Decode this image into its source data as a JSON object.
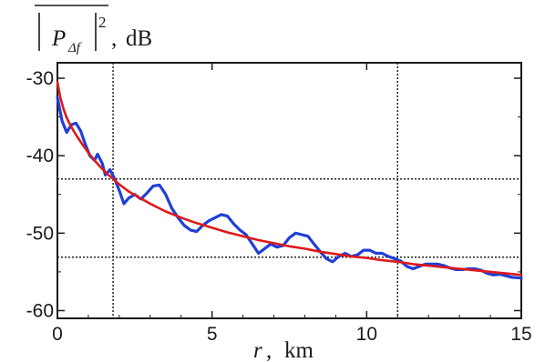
{
  "chart_data": {
    "type": "line",
    "xlabel": {
      "var": "r",
      "sep": ",",
      "unit": "km"
    },
    "ylabel": {
      "base": "P",
      "subscript": "Δf",
      "power": "2",
      "sep": ",",
      "unit": "dB"
    },
    "xlim": [
      0,
      15
    ],
    "ylim": [
      -61,
      -28
    ],
    "xticks": [
      0,
      5,
      10,
      15
    ],
    "yticks": [
      -30,
      -40,
      -50,
      -60
    ],
    "x_tick_labels": [
      "0",
      "5",
      "10",
      "15"
    ],
    "y_tick_labels": [
      "-30",
      "-40",
      "-50",
      "-60"
    ],
    "reference_lines": {
      "vertical_x": [
        1.8,
        11.0
      ],
      "horizontal_y": [
        -43.0,
        -53.1
      ]
    },
    "series": [
      {
        "color": "#1f3fd6",
        "x": [
          0.0,
          0.15,
          0.3,
          0.45,
          0.6,
          0.75,
          0.9,
          1.05,
          1.2,
          1.3,
          1.45,
          1.55,
          1.7,
          1.85,
          2.0,
          2.15,
          2.3,
          2.5,
          2.7,
          2.9,
          3.1,
          3.3,
          3.5,
          3.7,
          3.9,
          4.1,
          4.3,
          4.5,
          4.7,
          4.9,
          5.1,
          5.3,
          5.5,
          5.7,
          5.9,
          6.1,
          6.3,
          6.5,
          6.7,
          6.9,
          7.1,
          7.3,
          7.5,
          7.7,
          7.9,
          8.1,
          8.3,
          8.5,
          8.7,
          8.9,
          9.1,
          9.3,
          9.5,
          9.7,
          9.9,
          10.1,
          10.3,
          10.5,
          10.7,
          10.9,
          11.1,
          11.3,
          11.5,
          11.7,
          11.9,
          12.1,
          12.3,
          12.5,
          12.7,
          12.9,
          13.1,
          13.3,
          13.5,
          13.7,
          13.9,
          14.1,
          14.3,
          14.5,
          14.7,
          15.0
        ],
        "y": [
          -32.5,
          -35.5,
          -37.0,
          -36.0,
          -35.8,
          -36.8,
          -38.5,
          -40.0,
          -40.6,
          -39.8,
          -41.0,
          -42.5,
          -41.8,
          -43.0,
          -44.5,
          -46.2,
          -45.5,
          -45.0,
          -45.6,
          -44.8,
          -43.9,
          -43.8,
          -45.0,
          -46.8,
          -48.0,
          -49.0,
          -49.6,
          -49.8,
          -49.0,
          -48.4,
          -48.0,
          -47.6,
          -47.8,
          -48.8,
          -49.6,
          -50.2,
          -51.4,
          -52.6,
          -52.0,
          -51.4,
          -51.8,
          -51.6,
          -50.6,
          -50.0,
          -50.2,
          -50.4,
          -51.4,
          -52.4,
          -53.3,
          -53.7,
          -53.0,
          -52.6,
          -53.0,
          -52.8,
          -52.2,
          -52.2,
          -52.6,
          -52.6,
          -53.0,
          -53.3,
          -53.6,
          -54.3,
          -54.6,
          -54.3,
          -54.0,
          -54.0,
          -54.0,
          -54.2,
          -54.5,
          -54.7,
          -54.7,
          -54.6,
          -54.6,
          -54.8,
          -55.2,
          -55.4,
          -55.3,
          -55.5,
          -55.7,
          -55.8
        ]
      },
      {
        "color": "#e01818",
        "x": [
          0.0,
          0.1,
          0.2,
          0.3,
          0.45,
          0.6,
          0.8,
          1.0,
          1.2,
          1.4,
          1.6,
          1.8,
          2.0,
          2.3,
          2.6,
          3.0,
          3.5,
          4.0,
          4.5,
          5.0,
          5.5,
          6.0,
          6.5,
          7.0,
          7.5,
          8.0,
          8.5,
          9.0,
          9.5,
          10.0,
          10.5,
          11.0,
          11.5,
          12.0,
          12.5,
          13.0,
          13.5,
          14.0,
          14.5,
          15.0
        ],
        "y": [
          -30.5,
          -32.6,
          -34.0,
          -35.1,
          -36.3,
          -37.3,
          -38.5,
          -39.6,
          -40.6,
          -41.5,
          -42.3,
          -43.0,
          -43.7,
          -44.6,
          -45.3,
          -46.2,
          -47.2,
          -48.0,
          -48.7,
          -49.3,
          -49.9,
          -50.4,
          -50.9,
          -51.3,
          -51.7,
          -52.0,
          -52.4,
          -52.7,
          -53.0,
          -53.2,
          -53.5,
          -53.7,
          -54.0,
          -54.2,
          -54.4,
          -54.6,
          -54.8,
          -55.0,
          -55.2,
          -55.4
        ]
      }
    ]
  }
}
